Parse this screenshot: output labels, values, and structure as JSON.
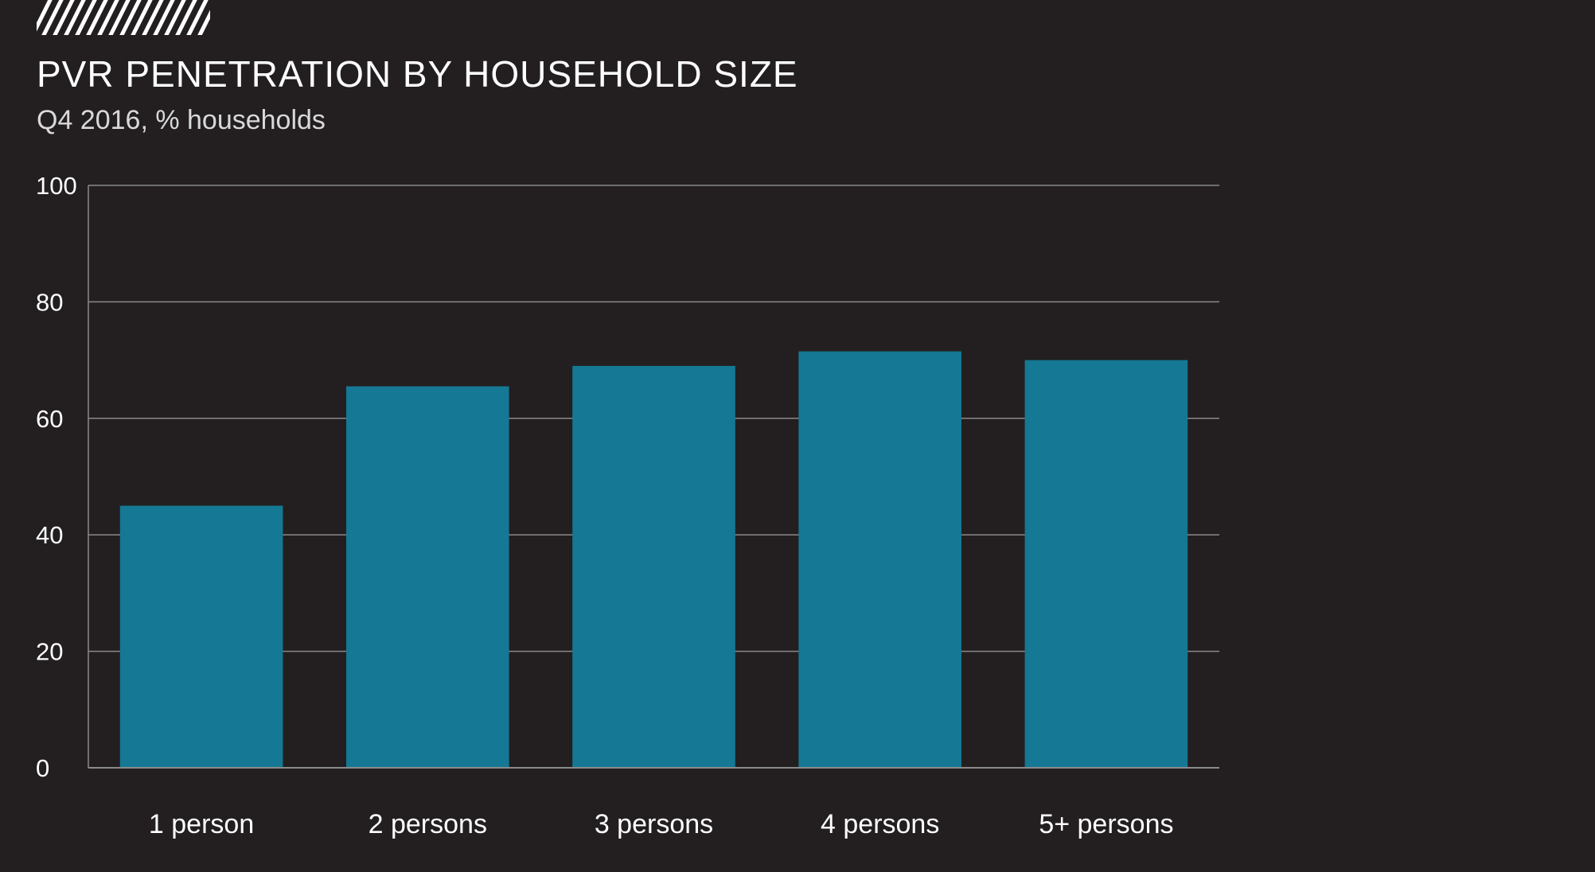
{
  "colors": {
    "background": "#231f20",
    "bar": "#157894",
    "grid": "#8a8a8a",
    "text": "#ffffff"
  },
  "chart_data": {
    "type": "bar",
    "title": "PVR PENETRATION BY HOUSEHOLD SIZE",
    "subtitle": "Q4 2016, % households",
    "categories": [
      "1 person",
      "2 persons",
      "3 persons",
      "4 persons",
      "5+ persons"
    ],
    "values": [
      45,
      65.5,
      69,
      71.5,
      70
    ],
    "ylim": [
      0,
      100
    ],
    "yticks": [
      "0",
      "20",
      "40",
      "60",
      "80",
      "100"
    ],
    "grid": true
  }
}
